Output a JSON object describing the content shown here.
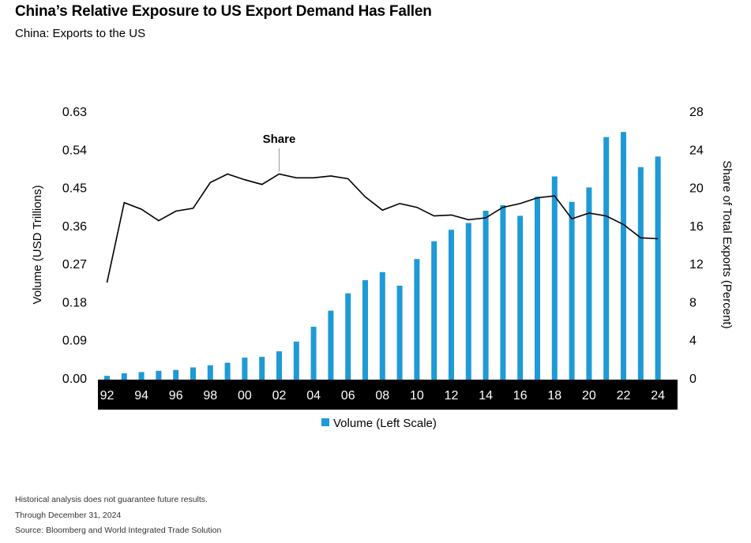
{
  "chart_data": {
    "type": "bar",
    "title": "China’s Relative Exposure to US Export Demand Has Fallen",
    "subtitle": "China: Exports to the US",
    "ylabel": "Volume (USD Trillions)",
    "y2label": "Share of Total Exports (Percent)",
    "ylim": [
      0,
      0.63
    ],
    "y2lim": [
      0,
      28
    ],
    "yticks": [
      "0.00",
      "0.09",
      "0.18",
      "0.27",
      "0.36",
      "0.45",
      "0.54",
      "0.63"
    ],
    "y2ticks": [
      "0",
      "4",
      "8",
      "12",
      "16",
      "20",
      "24",
      "28"
    ],
    "x_tick_labels": [
      "92",
      "94",
      "96",
      "98",
      "00",
      "02",
      "04",
      "06",
      "08",
      "10",
      "12",
      "14",
      "16",
      "18",
      "20",
      "22",
      "24"
    ],
    "categories": [
      "1992",
      "1993",
      "1994",
      "1995",
      "1996",
      "1997",
      "1998",
      "1999",
      "2000",
      "2001",
      "2002",
      "2003",
      "2004",
      "2005",
      "2006",
      "2007",
      "2008",
      "2009",
      "2010",
      "2011",
      "2012",
      "2013",
      "2014",
      "2015",
      "2016",
      "2017",
      "2018",
      "2019",
      "2020",
      "2021",
      "2022",
      "2023",
      "2024"
    ],
    "series": [
      {
        "name": "Volume (Left Scale)",
        "type": "bar",
        "axis": "left",
        "color": "#1e9ad6",
        "values": [
          0.007,
          0.013,
          0.016,
          0.019,
          0.021,
          0.027,
          0.032,
          0.038,
          0.05,
          0.052,
          0.065,
          0.088,
          0.123,
          0.161,
          0.202,
          0.233,
          0.252,
          0.22,
          0.283,
          0.325,
          0.352,
          0.368,
          0.397,
          0.41,
          0.385,
          0.43,
          0.478,
          0.418,
          0.452,
          0.571,
          0.583,
          0.5,
          0.525
        ]
      },
      {
        "name": "Share",
        "type": "line",
        "axis": "right",
        "color": "#000000",
        "values": [
          10.1,
          18.5,
          17.8,
          16.6,
          17.6,
          17.9,
          20.6,
          21.5,
          20.9,
          20.4,
          21.5,
          21.1,
          21.1,
          21.3,
          21.0,
          19.1,
          17.7,
          18.4,
          18.0,
          17.1,
          17.2,
          16.7,
          16.9,
          18.0,
          18.4,
          19.0,
          19.2,
          16.8,
          17.4,
          17.1,
          16.2,
          14.8,
          14.7
        ]
      }
    ],
    "annotation": "Share",
    "legend": [
      "Volume (Left Scale)"
    ],
    "legend_position": "bottom-center",
    "grid": false
  },
  "footnotes": {
    "disclaimer": "Historical analysis does not guarantee future results.",
    "through": "Through December 31, 2024",
    "source": "Source: Bloomberg and World Integrated Trade Solution"
  }
}
